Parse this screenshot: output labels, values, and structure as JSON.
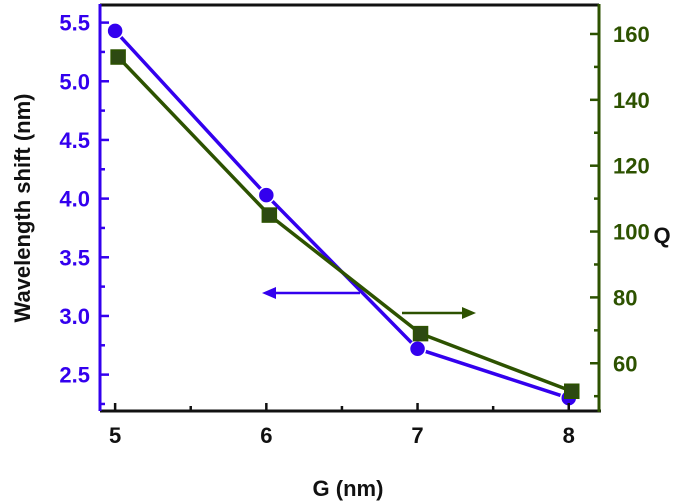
{
  "chart_data": {
    "type": "line",
    "title": "",
    "xlabel": "G (nm)",
    "ylabel": "Wavelength shift (nm)",
    "y2label": "Q",
    "x": [
      5,
      6,
      7,
      8
    ],
    "xlim": [
      4.9,
      8.2
    ],
    "ylim": [
      2.19,
      5.65
    ],
    "y2lim": [
      45.5,
      168.8
    ],
    "x_ticks": [
      "5",
      "6",
      "7",
      "8"
    ],
    "y_ticks": [
      "2.5",
      "3.0",
      "3.5",
      "4.0",
      "4.5",
      "5.0",
      "5.5"
    ],
    "y2_ticks": [
      "60",
      "80",
      "100",
      "120",
      "140",
      "160"
    ],
    "grid": false,
    "legend": null,
    "series": [
      {
        "name": "Wavelength shift",
        "axis": "left",
        "marker": "circle",
        "color": "#3300ee",
        "values": [
          5.43,
          4.03,
          2.72,
          2.3
        ]
      },
      {
        "name": "Q",
        "axis": "right",
        "marker": "square",
        "color": "#2d5200",
        "values": [
          153,
          105,
          69,
          51.5
        ]
      }
    ],
    "annotations": [
      {
        "type": "arrow",
        "direction": "left",
        "color": "#3300ee",
        "meaning": "points to left axis (Wavelength shift)"
      },
      {
        "type": "arrow",
        "direction": "right",
        "color": "#2d5200",
        "meaning": "points to right axis (Q)"
      }
    ]
  },
  "colors": {
    "left_axis": "#3300ee",
    "right_axis": "#2d5200",
    "frame": "#111111",
    "marker_square_fill": "#2d4a12"
  }
}
